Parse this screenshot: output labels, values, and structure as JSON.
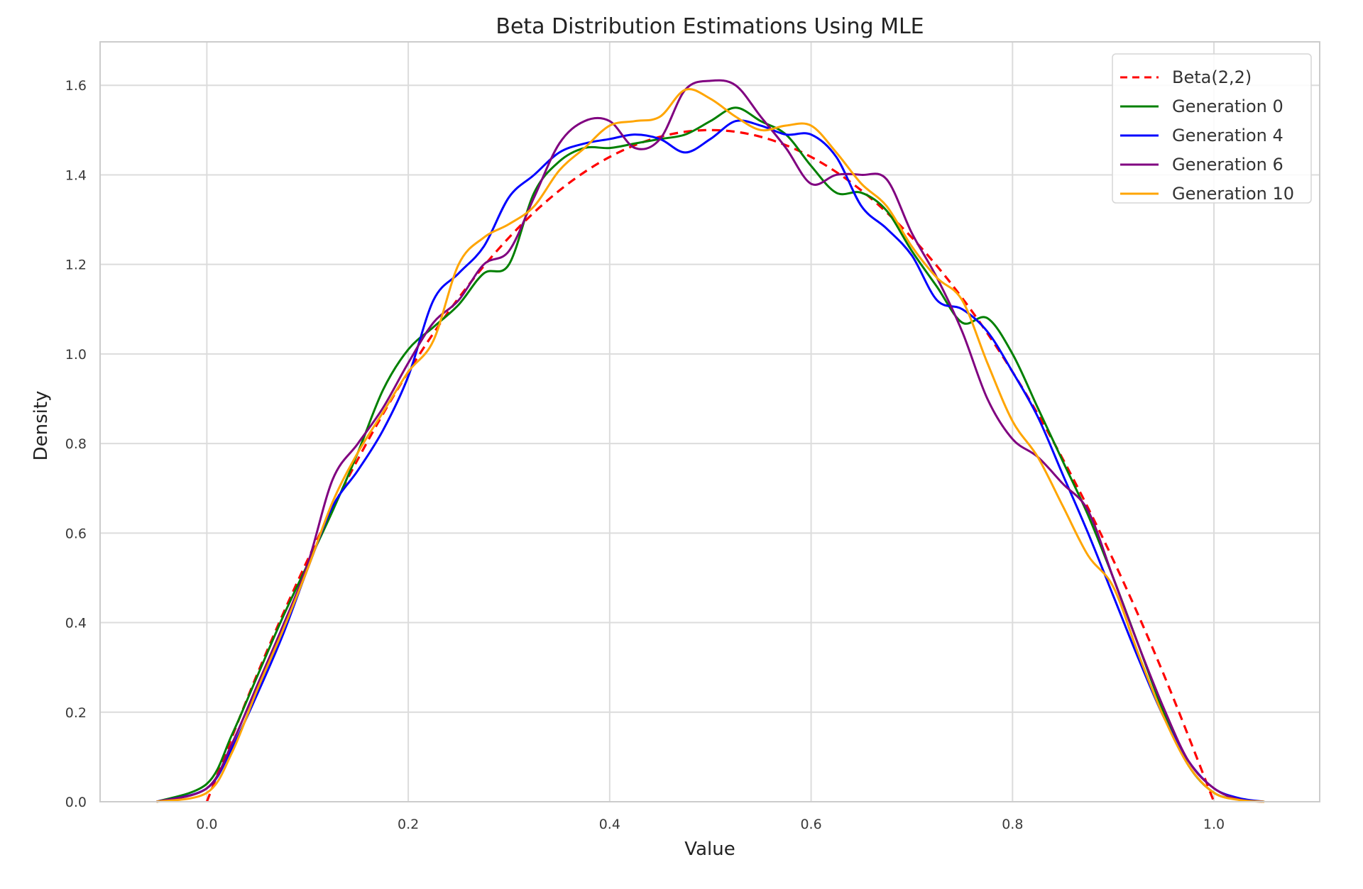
{
  "chart_data": {
    "type": "line",
    "title": "Beta Distribution Estimations Using MLE",
    "xlabel": "Value",
    "ylabel": "Density",
    "xlim": [
      -0.106,
      1.105
    ],
    "ylim": [
      0,
      1.697
    ],
    "xticks": [
      "0.0",
      "0.2",
      "0.4",
      "0.6",
      "0.8",
      "1.0"
    ],
    "yticks": [
      "0.0",
      "0.2",
      "0.4",
      "0.6",
      "0.8",
      "1.0",
      "1.2",
      "1.4",
      "1.6"
    ],
    "grid": true,
    "legend_position": "top-right",
    "series": [
      {
        "name": "Beta(2,2)",
        "color": "#ff0000",
        "dashed": true,
        "x": [
          0,
          0.05,
          0.1,
          0.15,
          0.2,
          0.25,
          0.3,
          0.35,
          0.4,
          0.45,
          0.5,
          0.55,
          0.6,
          0.65,
          0.7,
          0.75,
          0.8,
          0.85,
          0.9,
          0.95,
          1.0
        ],
        "y": [
          0,
          0.285,
          0.54,
          0.765,
          0.96,
          1.125,
          1.26,
          1.365,
          1.44,
          1.485,
          1.5,
          1.485,
          1.44,
          1.365,
          1.26,
          1.125,
          0.96,
          0.765,
          0.54,
          0.285,
          0
        ]
      },
      {
        "name": "Generation 0",
        "color": "#008000",
        "dashed": false,
        "x": [
          -0.05,
          0,
          0.025,
          0.05,
          0.075,
          0.1,
          0.125,
          0.15,
          0.175,
          0.2,
          0.225,
          0.25,
          0.275,
          0.3,
          0.325,
          0.35,
          0.375,
          0.4,
          0.425,
          0.45,
          0.475,
          0.5,
          0.525,
          0.55,
          0.575,
          0.6,
          0.625,
          0.65,
          0.675,
          0.7,
          0.725,
          0.75,
          0.775,
          0.8,
          0.825,
          0.85,
          0.875,
          0.9,
          0.925,
          0.95,
          0.975,
          1.0,
          1.025,
          1.05
        ],
        "y": [
          0,
          0.04,
          0.15,
          0.28,
          0.41,
          0.53,
          0.65,
          0.78,
          0.92,
          1.01,
          1.06,
          1.11,
          1.18,
          1.2,
          1.36,
          1.43,
          1.46,
          1.46,
          1.47,
          1.48,
          1.49,
          1.52,
          1.55,
          1.52,
          1.49,
          1.42,
          1.36,
          1.36,
          1.32,
          1.23,
          1.15,
          1.07,
          1.08,
          1.0,
          0.88,
          0.76,
          0.64,
          0.5,
          0.35,
          0.2,
          0.08,
          0.02,
          0.005,
          0
        ]
      },
      {
        "name": "Generation 4",
        "color": "#0000ff",
        "dashed": false,
        "x": [
          -0.05,
          0,
          0.025,
          0.05,
          0.075,
          0.1,
          0.125,
          0.15,
          0.175,
          0.2,
          0.225,
          0.25,
          0.275,
          0.3,
          0.325,
          0.35,
          0.375,
          0.4,
          0.425,
          0.45,
          0.475,
          0.5,
          0.525,
          0.55,
          0.575,
          0.6,
          0.625,
          0.65,
          0.675,
          0.7,
          0.725,
          0.75,
          0.775,
          0.8,
          0.825,
          0.85,
          0.875,
          0.9,
          0.925,
          0.95,
          0.975,
          1.0,
          1.025,
          1.05
        ],
        "y": [
          0,
          0.03,
          0.12,
          0.24,
          0.37,
          0.52,
          0.66,
          0.74,
          0.83,
          0.95,
          1.12,
          1.18,
          1.24,
          1.35,
          1.4,
          1.45,
          1.47,
          1.48,
          1.49,
          1.48,
          1.45,
          1.48,
          1.52,
          1.51,
          1.49,
          1.49,
          1.44,
          1.33,
          1.28,
          1.22,
          1.12,
          1.1,
          1.05,
          0.96,
          0.86,
          0.73,
          0.6,
          0.46,
          0.32,
          0.19,
          0.09,
          0.03,
          0.008,
          0
        ]
      },
      {
        "name": "Generation 6",
        "color": "#800080",
        "dashed": false,
        "x": [
          -0.05,
          0,
          0.025,
          0.05,
          0.075,
          0.1,
          0.125,
          0.15,
          0.175,
          0.2,
          0.225,
          0.25,
          0.275,
          0.3,
          0.325,
          0.35,
          0.375,
          0.4,
          0.425,
          0.45,
          0.475,
          0.5,
          0.525,
          0.55,
          0.575,
          0.6,
          0.625,
          0.65,
          0.675,
          0.7,
          0.725,
          0.75,
          0.775,
          0.8,
          0.825,
          0.85,
          0.875,
          0.9,
          0.925,
          0.95,
          0.975,
          1.0,
          1.025,
          1.05
        ],
        "y": [
          0,
          0.03,
          0.13,
          0.26,
          0.39,
          0.53,
          0.72,
          0.8,
          0.88,
          0.98,
          1.07,
          1.12,
          1.2,
          1.23,
          1.35,
          1.47,
          1.52,
          1.52,
          1.46,
          1.48,
          1.59,
          1.61,
          1.6,
          1.53,
          1.46,
          1.38,
          1.4,
          1.4,
          1.39,
          1.27,
          1.17,
          1.05,
          0.9,
          0.81,
          0.77,
          0.71,
          0.65,
          0.5,
          0.35,
          0.21,
          0.09,
          0.03,
          0.005,
          0
        ]
      },
      {
        "name": "Generation 10",
        "color": "#ffa500",
        "dashed": false,
        "x": [
          -0.05,
          0,
          0.025,
          0.05,
          0.075,
          0.1,
          0.125,
          0.15,
          0.175,
          0.2,
          0.225,
          0.25,
          0.275,
          0.3,
          0.325,
          0.35,
          0.375,
          0.4,
          0.425,
          0.45,
          0.475,
          0.5,
          0.525,
          0.55,
          0.575,
          0.6,
          0.625,
          0.65,
          0.675,
          0.7,
          0.725,
          0.75,
          0.775,
          0.8,
          0.825,
          0.85,
          0.875,
          0.9,
          0.925,
          0.95,
          0.975,
          1.0,
          1.025,
          1.05
        ],
        "y": [
          0,
          0.02,
          0.11,
          0.25,
          0.38,
          0.52,
          0.67,
          0.78,
          0.87,
          0.96,
          1.03,
          1.2,
          1.26,
          1.29,
          1.33,
          1.41,
          1.46,
          1.51,
          1.52,
          1.53,
          1.59,
          1.57,
          1.53,
          1.5,
          1.51,
          1.51,
          1.45,
          1.38,
          1.33,
          1.24,
          1.17,
          1.12,
          0.98,
          0.85,
          0.77,
          0.66,
          0.55,
          0.48,
          0.33,
          0.19,
          0.08,
          0.02,
          0.004,
          0
        ]
      }
    ]
  }
}
